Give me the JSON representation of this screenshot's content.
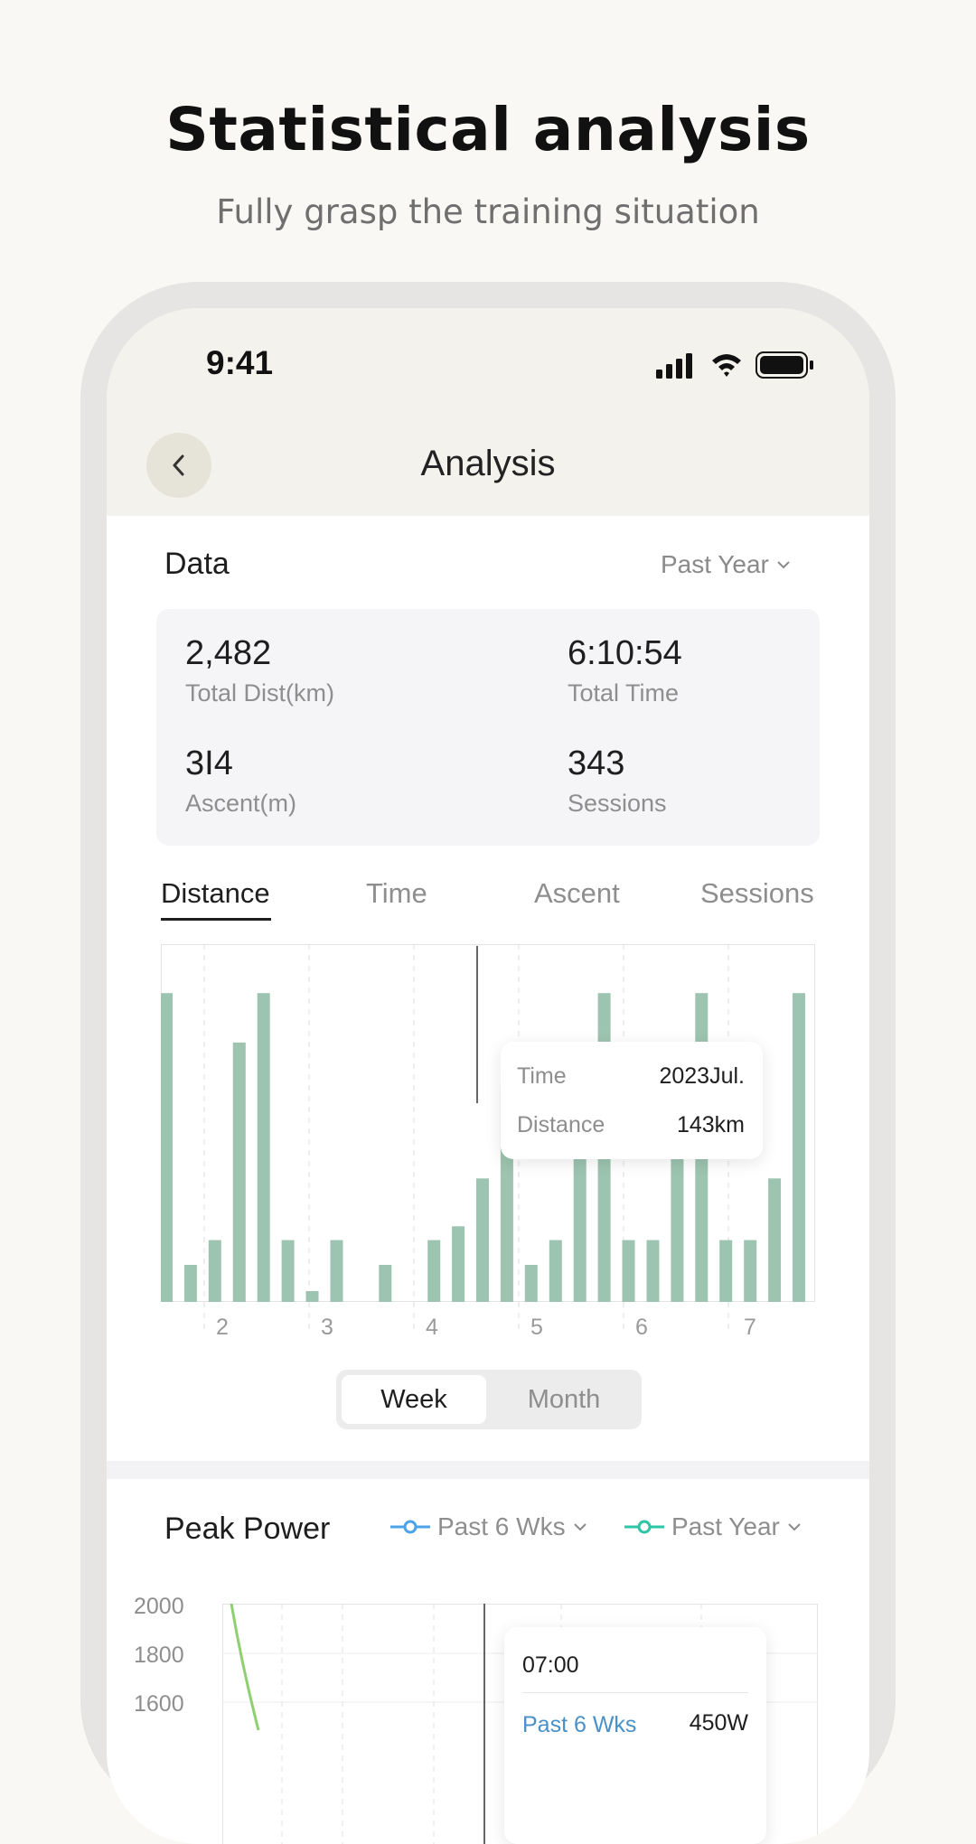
{
  "hero": {
    "title": "Statistical analysis",
    "subtitle": "Fully grasp the training situation"
  },
  "status_bar": {
    "time": "9:41"
  },
  "nav": {
    "title": "Analysis",
    "back_icon": "chevron-left-icon"
  },
  "data_section": {
    "title": "Data",
    "range": "Past Year",
    "stats": [
      {
        "value": "2,482",
        "label": "Total Dist(km)"
      },
      {
        "value": "6:10:54",
        "label": "Total Time"
      },
      {
        "value": "3I4",
        "label": "Ascent(m)"
      },
      {
        "value": "343",
        "label": "Sessions"
      }
    ]
  },
  "tabs": [
    {
      "label": "Distance",
      "active": true
    },
    {
      "label": "Time",
      "active": false
    },
    {
      "label": "Ascent",
      "active": false
    },
    {
      "label": "Sessions",
      "active": false
    }
  ],
  "chart_data": {
    "type": "bar",
    "x_tick_labels": [
      "2",
      "3",
      "4",
      "5",
      "6",
      "7"
    ],
    "values": [
      100,
      12,
      20,
      84,
      100,
      20,
      3.5,
      20,
      0,
      12,
      0,
      20,
      24.5,
      40,
      70,
      12,
      20,
      50,
      100,
      20,
      20,
      50,
      100,
      20,
      20,
      40,
      100
    ],
    "ylim": [
      0,
      110
    ],
    "grid": true,
    "bar_color": "#9cc4b0",
    "tooltip": {
      "time_label": "Time",
      "time_value": "2023Jul.",
      "distance_label": "Distance",
      "distance_value": "143km"
    }
  },
  "period_toggle": {
    "week": "Week",
    "month": "Month",
    "selected": "Week"
  },
  "peak_power": {
    "title": "Peak Power",
    "legend": [
      {
        "label": "Past 6 Wks",
        "color": "#4da3e8"
      },
      {
        "label": "Past Year",
        "color": "#2ec4a6"
      }
    ],
    "y_ticks": [
      "2000",
      "1800",
      "1600"
    ],
    "tooltip": {
      "time": "07:00",
      "series_label": "Past 6 Wks",
      "series_value": "450W"
    }
  }
}
